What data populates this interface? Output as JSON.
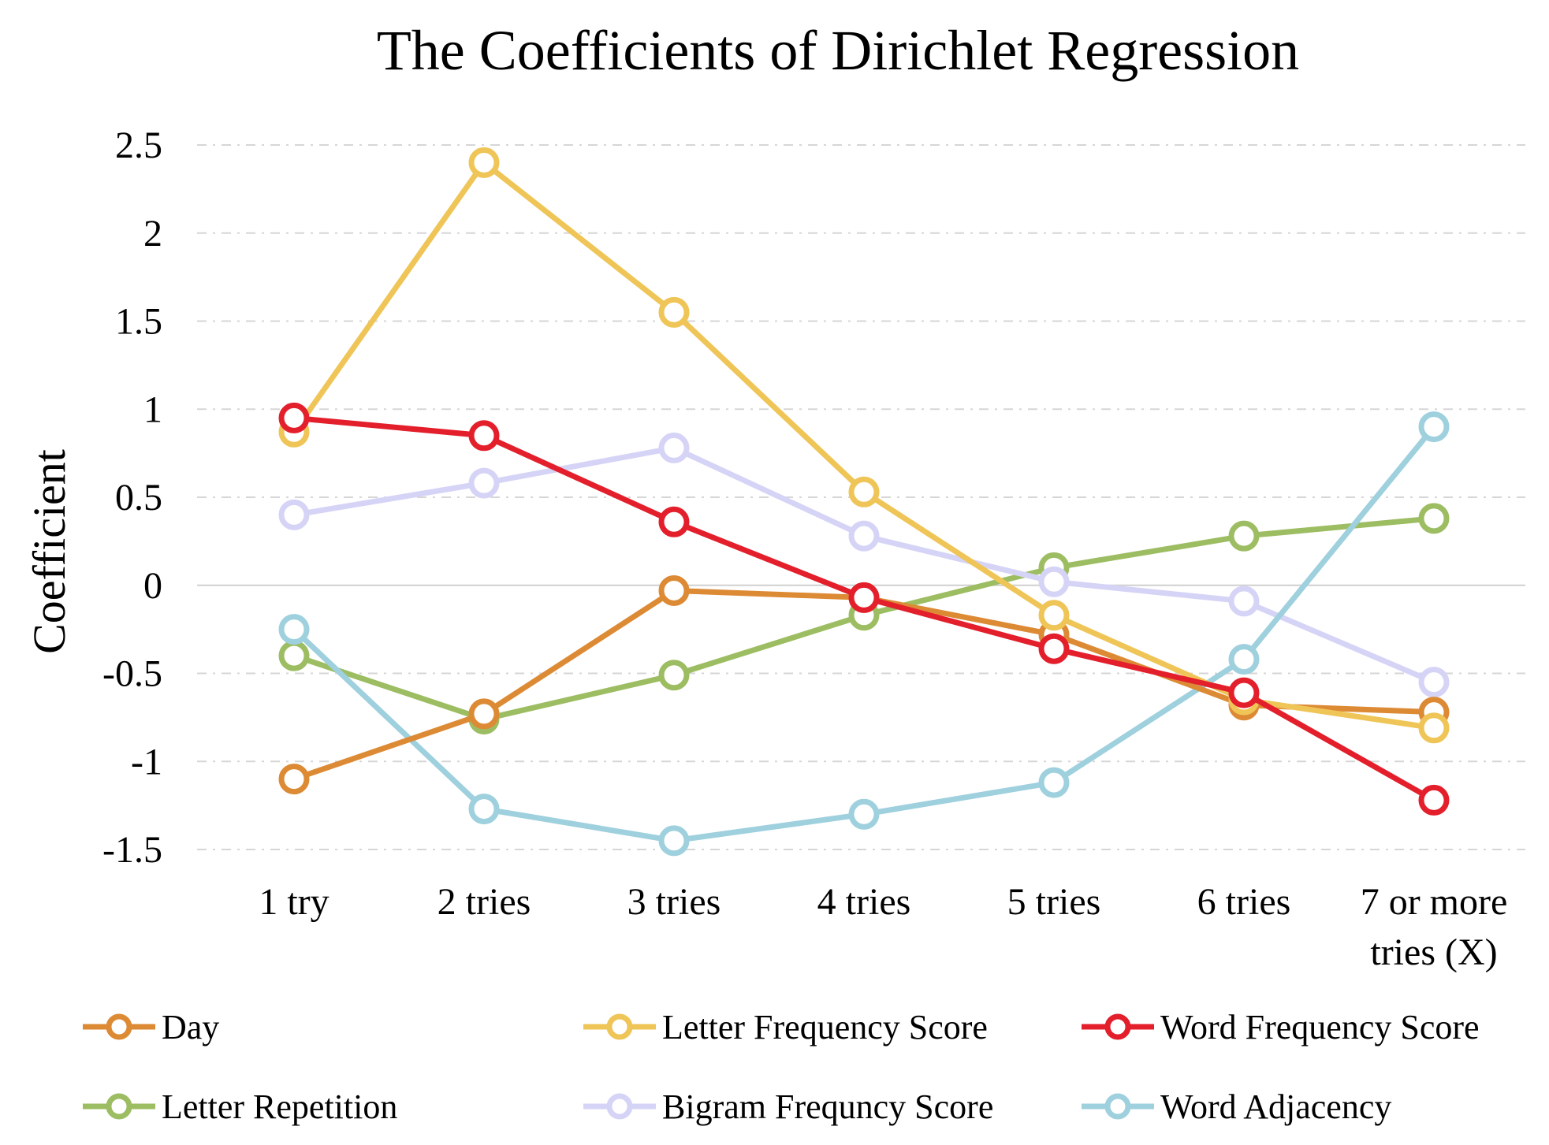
{
  "chart_data": {
    "type": "line",
    "title": "The Coefficients of Dirichlet Regression",
    "xlabel": "",
    "ylabel": "Coefficient",
    "categories": [
      "1 try",
      "2 tries",
      "3 tries",
      "4 tries",
      "5 tries",
      "6 tries",
      "7 or more tries (X)"
    ],
    "category_lines": [
      [
        "1 try"
      ],
      [
        "2 tries"
      ],
      [
        "3 tries"
      ],
      [
        "4 tries"
      ],
      [
        "5 tries"
      ],
      [
        "6 tries"
      ],
      [
        "7 or more",
        "tries (X)"
      ]
    ],
    "ylim": [
      -1.5,
      2.5
    ],
    "yticks": [
      2.5,
      2,
      1.5,
      1,
      0.5,
      0,
      -0.5,
      -1,
      -1.5
    ],
    "ytick_labels": [
      "2.5",
      "2",
      "1.5",
      "1",
      "0.5",
      "0",
      "-0.5",
      "-1",
      "-1.5"
    ],
    "grid": "horizontal dashed",
    "legend_position": "bottom",
    "series": [
      {
        "name": "Day",
        "color": "#DD8A35",
        "values": [
          -1.1,
          -0.73,
          -0.03,
          -0.07,
          -0.28,
          -0.68,
          -0.72
        ]
      },
      {
        "name": "Letter Frequency Score",
        "color": "#EFC557",
        "values": [
          0.87,
          2.4,
          1.55,
          0.53,
          -0.17,
          -0.65,
          -0.81
        ]
      },
      {
        "name": "Word Frequency Score",
        "color": "#E41F2C",
        "values": [
          0.95,
          0.85,
          0.36,
          -0.07,
          -0.36,
          -0.61,
          -1.22
        ]
      },
      {
        "name": "Letter Repetition",
        "color": "#9DBD62",
        "values": [
          -0.4,
          -0.76,
          -0.51,
          -0.17,
          0.1,
          0.28,
          0.38
        ]
      },
      {
        "name": "Bigram Frequncy Score",
        "color": "#D6D4F6",
        "values": [
          0.4,
          0.58,
          0.78,
          0.28,
          0.02,
          -0.09,
          -0.55
        ]
      },
      {
        "name": "Word Adjacency",
        "color": "#9ED0DE",
        "values": [
          -0.25,
          -1.27,
          -1.45,
          -1.3,
          -1.12,
          -0.42,
          0.9
        ]
      }
    ]
  }
}
